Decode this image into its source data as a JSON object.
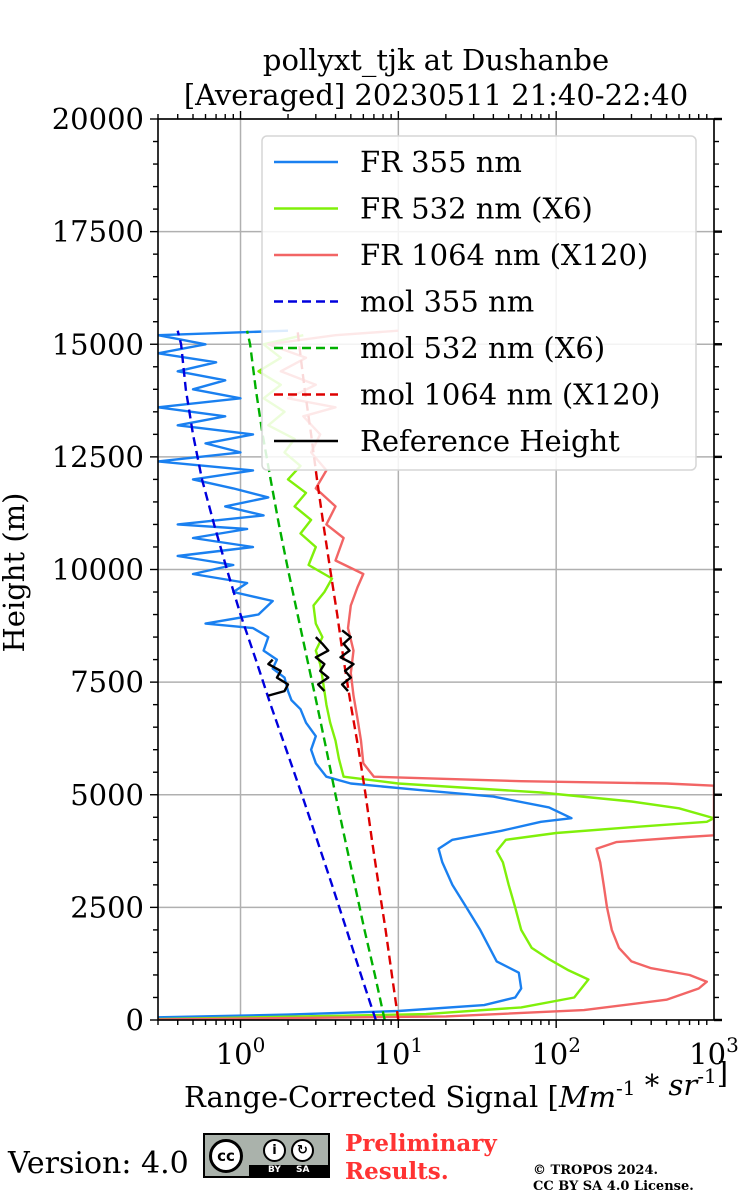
{
  "title_line1": "pollyxt_tjk at Dushanbe",
  "title_line2": "[Averaged] 20230511 21:40-22:40",
  "footer": {
    "version_text": "Version: 4.0",
    "license_badge": {
      "icon": "cc-by-sa-icon",
      "by_label": "BY",
      "sa_label": "SA"
    },
    "preliminary_line1": "Preliminary",
    "preliminary_line2": "Results.",
    "copyright_line1": "© TROPOS 2024.",
    "copyright_line2": "CC BY SA 4.0 License."
  },
  "chart_data": {
    "type": "line",
    "title": "pollyxt_tjk at Dushanbe [Averaged] 20230511 21:40-22:40",
    "xlabel": "Range-Corrected Signal [Mm^-1 * sr^-1]",
    "ylabel": "Height (m)",
    "xscale": "log",
    "xlim": [
      0.3,
      1000
    ],
    "ylim": [
      0,
      20000
    ],
    "x_ticks": [
      1,
      10,
      100,
      1000
    ],
    "x_tick_labels": [
      "10^0",
      "10^1",
      "10^2",
      "10^3"
    ],
    "y_ticks": [
      0,
      2500,
      5000,
      7500,
      10000,
      12500,
      15000,
      17500,
      20000
    ],
    "y_tick_labels": [
      "0",
      "2500",
      "5000",
      "7500",
      "10000",
      "12500",
      "15000",
      "17500",
      "20000"
    ],
    "grid": true,
    "legend_position": "upper-right",
    "series": [
      {
        "name": "FR 355 nm",
        "color": "#1a80f0",
        "dash": "solid",
        "points": [
          [
            0.3,
            60
          ],
          [
            2,
            120
          ],
          [
            10,
            200
          ],
          [
            35,
            330
          ],
          [
            55,
            500
          ],
          [
            60,
            700
          ],
          [
            58,
            1050
          ],
          [
            42,
            1300
          ],
          [
            33,
            2000
          ],
          [
            27,
            2500
          ],
          [
            22,
            3000
          ],
          [
            19,
            3500
          ],
          [
            18,
            3800
          ],
          [
            22,
            4000
          ],
          [
            45,
            4200
          ],
          [
            80,
            4400
          ],
          [
            125,
            4480
          ],
          [
            90,
            4720
          ],
          [
            40,
            4960
          ],
          [
            14,
            5100
          ],
          [
            5,
            5250
          ],
          [
            3.5,
            5400
          ],
          [
            3,
            5700
          ],
          [
            2.8,
            6000
          ],
          [
            3,
            6300
          ],
          [
            2.6,
            6600
          ],
          [
            2.4,
            6900
          ],
          [
            2.1,
            7100
          ],
          [
            2,
            7300
          ],
          [
            1.9,
            7600
          ],
          [
            1.6,
            7800
          ],
          [
            1.7,
            8000
          ],
          [
            1.4,
            8200
          ],
          [
            1.5,
            8500
          ],
          [
            1.2,
            8700
          ],
          [
            0.6,
            8800
          ],
          [
            1.3,
            9000
          ],
          [
            1.6,
            9300
          ],
          [
            0.9,
            9500
          ],
          [
            1.1,
            9700
          ],
          [
            0.5,
            9900
          ],
          [
            0.9,
            10100
          ],
          [
            0.4,
            10300
          ],
          [
            1.2,
            10500
          ],
          [
            0.5,
            10700
          ],
          [
            1.1,
            10900
          ],
          [
            0.4,
            11000
          ],
          [
            1.4,
            11200
          ],
          [
            0.8,
            11400
          ],
          [
            1.5,
            11600
          ],
          [
            0.9,
            11800
          ],
          [
            0.5,
            12000
          ],
          [
            1.2,
            12200
          ],
          [
            0.3,
            12400
          ],
          [
            1,
            12600
          ],
          [
            0.6,
            12800
          ],
          [
            1.2,
            13000
          ],
          [
            0.4,
            13200
          ],
          [
            0.8,
            13400
          ],
          [
            0.3,
            13600
          ],
          [
            1,
            13800
          ],
          [
            0.5,
            14000
          ],
          [
            0.8,
            14200
          ],
          [
            0.4,
            14400
          ],
          [
            0.7,
            14600
          ],
          [
            0.3,
            14800
          ],
          [
            0.6,
            15000
          ],
          [
            0.3,
            15200
          ],
          [
            2,
            15300
          ]
        ]
      },
      {
        "name": "FR 532 nm (X6)",
        "color": "#80f00a",
        "dash": "solid",
        "points": [
          [
            0.3,
            20
          ],
          [
            15,
            130
          ],
          [
            60,
            280
          ],
          [
            130,
            500
          ],
          [
            160,
            900
          ],
          [
            120,
            1100
          ],
          [
            90,
            1350
          ],
          [
            70,
            1600
          ],
          [
            60,
            2000
          ],
          [
            55,
            2500
          ],
          [
            50,
            3000
          ],
          [
            46,
            3500
          ],
          [
            42,
            3750
          ],
          [
            48,
            4000
          ],
          [
            100,
            4150
          ],
          [
            300,
            4280
          ],
          [
            900,
            4400
          ],
          [
            1000,
            4480
          ],
          [
            600,
            4700
          ],
          [
            300,
            4850
          ],
          [
            80,
            5050
          ],
          [
            10,
            5250
          ],
          [
            4.5,
            5400
          ],
          [
            4.2,
            5800
          ],
          [
            4,
            6200
          ],
          [
            3.7,
            6600
          ],
          [
            3.5,
            7000
          ],
          [
            3.4,
            7300
          ],
          [
            3.3,
            7600
          ],
          [
            3.2,
            7900
          ],
          [
            3,
            8200
          ],
          [
            3.3,
            8500
          ],
          [
            3,
            8800
          ],
          [
            2.9,
            9200
          ],
          [
            3.4,
            9500
          ],
          [
            3.8,
            9800
          ],
          [
            2.7,
            10100
          ],
          [
            3,
            10500
          ],
          [
            2.4,
            10800
          ],
          [
            2.8,
            11100
          ],
          [
            2.2,
            11400
          ],
          [
            2.6,
            11700
          ],
          [
            2,
            12000
          ],
          [
            2.4,
            12300
          ],
          [
            1.9,
            12600
          ],
          [
            2.2,
            12900
          ],
          [
            1.5,
            13200
          ],
          [
            1.9,
            13500
          ],
          [
            1.4,
            13800
          ],
          [
            1.8,
            14100
          ],
          [
            1.3,
            14400
          ],
          [
            1.8,
            14700
          ],
          [
            1.4,
            15000
          ],
          [
            2.5,
            15200
          ]
        ]
      },
      {
        "name": "FR 1064 nm (X120)",
        "color": "#f26565",
        "dash": "solid",
        "points": [
          [
            0.3,
            10
          ],
          [
            20,
            80
          ],
          [
            150,
            220
          ],
          [
            500,
            450
          ],
          [
            800,
            700
          ],
          [
            900,
            850
          ],
          [
            700,
            1000
          ],
          [
            400,
            1150
          ],
          [
            300,
            1300
          ],
          [
            250,
            1600
          ],
          [
            225,
            2000
          ],
          [
            210,
            2500
          ],
          [
            200,
            3000
          ],
          [
            190,
            3500
          ],
          [
            180,
            3800
          ],
          [
            240,
            3950
          ],
          [
            600,
            4050
          ],
          [
            1000,
            4100
          ],
          [
            1000,
            5200
          ],
          [
            500,
            5250
          ],
          [
            60,
            5300
          ],
          [
            7,
            5400
          ],
          [
            6,
            5700
          ],
          [
            5.8,
            6200
          ],
          [
            5.5,
            6700
          ],
          [
            5.2,
            7200
          ],
          [
            5,
            7700
          ],
          [
            5.2,
            8200
          ],
          [
            4.8,
            8700
          ],
          [
            5,
            9200
          ],
          [
            5.5,
            9600
          ],
          [
            6,
            9900
          ],
          [
            4,
            10200
          ],
          [
            4.5,
            10700
          ],
          [
            3.5,
            11000
          ],
          [
            4,
            11400
          ],
          [
            3,
            11800
          ],
          [
            3.5,
            12200
          ],
          [
            2.8,
            12600
          ],
          [
            3.2,
            13000
          ],
          [
            2.5,
            13400
          ],
          [
            4,
            13600
          ],
          [
            2,
            13800
          ],
          [
            3,
            14100
          ],
          [
            1.8,
            14400
          ],
          [
            2.6,
            14700
          ],
          [
            1.5,
            15000
          ],
          [
            4,
            15200
          ],
          [
            10,
            15300
          ]
        ]
      },
      {
        "name": "mol 355 nm",
        "color": "#0000dd",
        "dash": "dashed",
        "points": [
          [
            7.2,
            0
          ],
          [
            5.8,
            1000
          ],
          [
            4.7,
            2000
          ],
          [
            3.8,
            3000
          ],
          [
            3.05,
            4000
          ],
          [
            2.45,
            5000
          ],
          [
            1.95,
            6000
          ],
          [
            1.55,
            7000
          ],
          [
            1.25,
            8000
          ],
          [
            1.0,
            9000
          ],
          [
            0.82,
            10000
          ],
          [
            0.68,
            11000
          ],
          [
            0.57,
            12000
          ],
          [
            0.5,
            13000
          ],
          [
            0.45,
            14000
          ],
          [
            0.42,
            15000
          ],
          [
            0.4,
            15300
          ]
        ]
      },
      {
        "name": "mol 532 nm (X6)",
        "color": "#00b000",
        "dash": "dashed",
        "points": [
          [
            8.2,
            0
          ],
          [
            7.1,
            1000
          ],
          [
            6.1,
            2000
          ],
          [
            5.3,
            3000
          ],
          [
            4.6,
            4000
          ],
          [
            4.0,
            5000
          ],
          [
            3.5,
            6000
          ],
          [
            3.05,
            7000
          ],
          [
            2.65,
            8000
          ],
          [
            2.3,
            9000
          ],
          [
            2.0,
            10000
          ],
          [
            1.75,
            11000
          ],
          [
            1.55,
            12000
          ],
          [
            1.38,
            13000
          ],
          [
            1.25,
            14000
          ],
          [
            1.15,
            15000
          ],
          [
            1.1,
            15300
          ]
        ]
      },
      {
        "name": "mol 1064 nm (X120)",
        "color": "#dd0000",
        "dash": "dashed",
        "points": [
          [
            10,
            0
          ],
          [
            9.1,
            1000
          ],
          [
            8.3,
            2000
          ],
          [
            7.5,
            3000
          ],
          [
            6.8,
            4000
          ],
          [
            6.2,
            5000
          ],
          [
            5.6,
            6000
          ],
          [
            5.0,
            7000
          ],
          [
            4.5,
            8000
          ],
          [
            4.1,
            9000
          ],
          [
            3.7,
            10000
          ],
          [
            3.35,
            11000
          ],
          [
            3.05,
            12000
          ],
          [
            2.8,
            13000
          ],
          [
            2.55,
            14000
          ],
          [
            2.35,
            15000
          ],
          [
            2.3,
            15300
          ]
        ]
      },
      {
        "name": "Reference Height",
        "color": "#000000",
        "dash": "solid",
        "segments": [
          [
            [
              1.5,
              7200
            ],
            [
              1.9,
              7300
            ],
            [
              2.0,
              7450
            ],
            [
              1.7,
              7600
            ],
            [
              1.8,
              7750
            ],
            [
              1.5,
              7900
            ],
            [
              1.6,
              8000
            ]
          ],
          [
            [
              3.4,
              7300
            ],
            [
              3.1,
              7450
            ],
            [
              3.6,
              7600
            ],
            [
              3.2,
              7750
            ],
            [
              3.4,
              7900
            ],
            [
              3.0,
              8050
            ],
            [
              3.6,
              8200
            ],
            [
              3.3,
              8350
            ],
            [
              3.0,
              8500
            ]
          ],
          [
            [
              4.8,
              7300
            ],
            [
              4.4,
              7450
            ],
            [
              5.0,
              7600
            ],
            [
              4.6,
              7750
            ],
            [
              5.2,
              7900
            ],
            [
              4.3,
              8050
            ],
            [
              4.9,
              8200
            ],
            [
              4.5,
              8350
            ],
            [
              5.0,
              8500
            ],
            [
              4.4,
              8650
            ]
          ]
        ]
      }
    ]
  }
}
